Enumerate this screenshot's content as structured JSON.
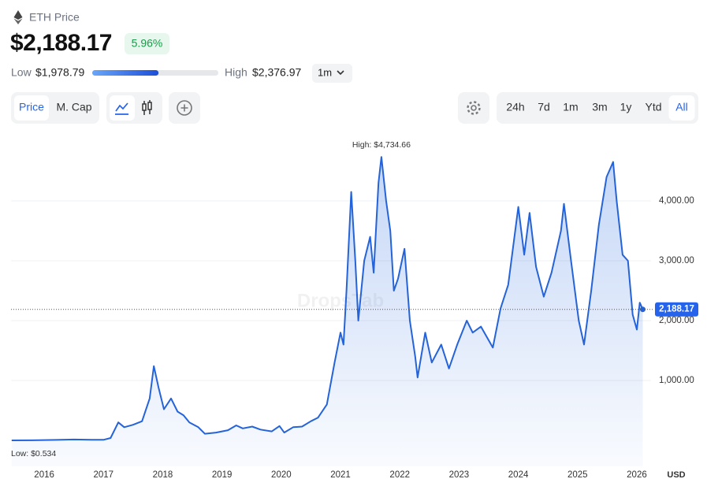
{
  "header": {
    "asset": "ETH Price",
    "price": "$2,188.17",
    "change": "5.96%"
  },
  "range": {
    "low_label": "Low",
    "low": "$1,978.79",
    "high_label": "High",
    "high": "$2,376.97",
    "period": "1m"
  },
  "ui": {
    "chart_tabs": [
      "Price",
      "M. Cap"
    ],
    "selected_tab": 0,
    "ranges": [
      "24h",
      "7d",
      "1m",
      "3m",
      "1y",
      "Ytd",
      "All"
    ],
    "selected_range": 6
  },
  "chart_data": {
    "type": "line",
    "color": "#2563d8",
    "x": [
      2015.45,
      2015.8,
      2016.2,
      2016.5,
      2016.8,
      2017.0,
      2017.12,
      2017.25,
      2017.35,
      2017.5,
      2017.65,
      2017.78,
      2017.85,
      2017.93,
      2018.02,
      2018.14,
      2018.25,
      2018.35,
      2018.45,
      2018.6,
      2018.71,
      2018.9,
      2019.1,
      2019.24,
      2019.35,
      2019.51,
      2019.65,
      2019.84,
      2019.97,
      2020.05,
      2020.2,
      2020.35,
      2020.5,
      2020.62,
      2020.77,
      2020.9,
      2021.0,
      2021.05,
      2021.1,
      2021.18,
      2021.25,
      2021.3,
      2021.4,
      2021.5,
      2021.56,
      2021.64,
      2021.69,
      2021.77,
      2021.84,
      2021.9,
      2021.97,
      2022.08,
      2022.17,
      2022.26,
      2022.3,
      2022.43,
      2022.54,
      2022.7,
      2022.83,
      2022.97,
      2023.13,
      2023.23,
      2023.37,
      2023.57,
      2023.7,
      2023.83,
      2024.0,
      2024.1,
      2024.19,
      2024.3,
      2024.43,
      2024.56,
      2024.72,
      2024.77,
      2024.89,
      2025.02,
      2025.11,
      2025.23,
      2025.36,
      2025.49,
      2025.6,
      2025.66,
      2025.76,
      2025.85,
      2025.93,
      2026.0,
      2026.05,
      2026.1
    ],
    "values": [
      0.534,
      1,
      8,
      14,
      11,
      9,
      40,
      300,
      220,
      260,
      320,
      700,
      1240,
      880,
      520,
      700,
      480,
      420,
      300,
      220,
      110,
      130,
      170,
      250,
      200,
      230,
      180,
      150,
      240,
      130,
      220,
      230,
      320,
      380,
      600,
      1300,
      1800,
      1600,
      2500,
      4150,
      3000,
      2000,
      3000,
      3400,
      2800,
      4300,
      4734.66,
      4000,
      3500,
      2500,
      2700,
      3200,
      2000,
      1400,
      1050,
      1800,
      1300,
      1600,
      1200,
      1600,
      2000,
      1800,
      1900,
      1550,
      2200,
      2600,
      3900,
      3100,
      3800,
      2900,
      2400,
      2800,
      3500,
      3950,
      3000,
      2000,
      1600,
      2500,
      3600,
      4400,
      4650,
      4000,
      3100,
      3000,
      2100,
      1850,
      2300,
      2188.17
    ],
    "xlim": [
      2015.44,
      2026.2
    ],
    "xticks": [
      2016,
      2017,
      2018,
      2019,
      2020,
      2021,
      2022,
      2023,
      2024,
      2025,
      2026
    ],
    "ylim": [
      0,
      5000
    ],
    "yticks": [
      {
        "value": 1000,
        "label": "1,000.00"
      },
      {
        "value": 2000,
        "label": "2,000.00"
      },
      {
        "value": 3000,
        "label": "3,000.00"
      },
      {
        "value": 4000,
        "label": "4,000.00"
      }
    ],
    "grid": true,
    "current_price": 2188.17,
    "current_label": "2,188.17",
    "high_annotation": "High: $4,734.66",
    "low_annotation": "Low: $0.534",
    "currency": "USD",
    "watermark": "DropsTab"
  }
}
